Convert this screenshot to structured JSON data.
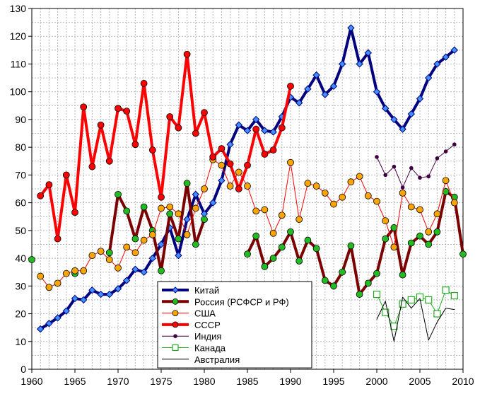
{
  "chart_data": {
    "type": "line",
    "title": "",
    "xlabel": "",
    "ylabel": "",
    "xlim": [
      1960,
      2010
    ],
    "ylim": [
      0,
      130
    ],
    "x_ticks": [
      1960,
      1965,
      1970,
      1975,
      1980,
      1985,
      1990,
      1995,
      2000,
      2005,
      2010
    ],
    "y_ticks": [
      0,
      10,
      20,
      30,
      40,
      50,
      60,
      70,
      80,
      90,
      100,
      110,
      120,
      130
    ],
    "grid": true,
    "legend_position": "bottom-center",
    "series": [
      {
        "name": "Китай",
        "color": "#000080",
        "width": 4,
        "marker": "diamond",
        "marker_color": "#3f8fff",
        "x": [
          1961,
          1962,
          1963,
          1964,
          1965,
          1966,
          1967,
          1968,
          1969,
          1970,
          1971,
          1972,
          1973,
          1974,
          1975,
          1976,
          1977,
          1978,
          1979,
          1980,
          1981,
          1982,
          1983,
          1984,
          1985,
          1986,
          1987,
          1988,
          1989,
          1990,
          1991,
          1992,
          1993,
          1994,
          1995,
          1996,
          1997,
          1998,
          1999,
          2000,
          2001,
          2002,
          2003,
          2004,
          2005,
          2006,
          2007,
          2008,
          2009
        ],
        "y": [
          14.5,
          16.5,
          18.5,
          21,
          25.5,
          25,
          28.5,
          27,
          27,
          29,
          32,
          36,
          35,
          40,
          45,
          51,
          41,
          54,
          63,
          56,
          60,
          68,
          81,
          88,
          86,
          90,
          86,
          85.5,
          91,
          98,
          96,
          101,
          106,
          99,
          102,
          110,
          123,
          110,
          114,
          100,
          94,
          90,
          86.5,
          92,
          97.5,
          105,
          110,
          112.5,
          115
        ]
      },
      {
        "name": "Россия (РСФСР и РФ)",
        "color": "#7b0000",
        "width": 4,
        "marker": "circle",
        "marker_color": "#22bb22",
        "segments": [
          {
            "x": [
              1960
            ],
            "y": [
              39.5
            ]
          },
          {
            "x": [
              1965
            ],
            "y": [
              34.5
            ]
          },
          {
            "x": [
              1969,
              1970,
              1971,
              1972,
              1973,
              1974,
              1975,
              1976,
              1977,
              1978,
              1979,
              1980,
              1981,
              1982
            ],
            "y": [
              42,
              63,
              57,
              47,
              58.5,
              50,
              35.5,
              56,
              47,
              67,
              45,
              54,
              null,
              null
            ]
          },
          {
            "x": [
              1985,
              1986,
              1987,
              1988,
              1989,
              1990,
              1991,
              1992,
              1993,
              1994,
              1995,
              1996,
              1997,
              1998,
              1999,
              2000,
              2001,
              2002,
              2003,
              2004,
              2005,
              2006,
              2007,
              2008,
              2009,
              2010
            ],
            "y": [
              41.5,
              48,
              37,
              40,
              44,
              49.5,
              39,
              46.5,
              43.5,
              32,
              30,
              35,
              44.5,
              27,
              31,
              34.5,
              47,
              51,
              34,
              45.5,
              48,
              45,
              49.5,
              64,
              62,
              41.5
            ]
          }
        ]
      },
      {
        "name": "США",
        "color": "#ff0000",
        "width": 1,
        "marker": "circle",
        "marker_color": "#ffa500",
        "x": [
          1961,
          1962,
          1963,
          1964,
          1965,
          1966,
          1967,
          1968,
          1969,
          1970,
          1971,
          1972,
          1973,
          1974,
          1975,
          1976,
          1977,
          1978,
          1979,
          1980,
          1981,
          1982,
          1983,
          1984,
          1985,
          1986,
          1987,
          1988,
          1989,
          1990,
          1991,
          1992,
          1993,
          1994,
          1995,
          1996,
          1997,
          1998,
          1999,
          2000,
          2001,
          2002,
          2003,
          2004,
          2005,
          2006,
          2007,
          2008,
          2009
        ],
        "y": [
          33.5,
          29.5,
          31,
          34.5,
          35.5,
          35.5,
          41,
          42.5,
          39.5,
          36.5,
          44,
          42,
          46.5,
          48.5,
          58,
          58.5,
          56,
          48.5,
          58,
          65,
          75.5,
          73.5,
          66,
          71,
          66,
          57,
          57.5,
          49,
          55.5,
          74.5,
          54,
          67,
          66,
          63.5,
          59.5,
          62,
          67.5,
          69.5,
          62.5,
          60.5,
          53.5,
          44,
          63.5,
          58.5,
          57.5,
          49.5,
          56,
          68,
          60
        ]
      },
      {
        "name": "СССР",
        "color": "#ff0000",
        "width": 4,
        "marker": "circle",
        "marker_color": "#ff0000",
        "x": [
          1961,
          1962,
          1963,
          1964,
          1965,
          1966,
          1967,
          1968,
          1969,
          1970,
          1971,
          1972,
          1973,
          1974,
          1975,
          1976,
          1977,
          1978,
          1979,
          1980,
          1981,
          1982,
          1983,
          1984,
          1985,
          1986,
          1987,
          1988,
          1989,
          1990
        ],
        "y": [
          62.5,
          66.5,
          47,
          70,
          56.5,
          94.5,
          73,
          88,
          75,
          94,
          93,
          81,
          103,
          79,
          62,
          91,
          87,
          113.5,
          85,
          92.5,
          76.5,
          79.5,
          74,
          65,
          73.5,
          86.5,
          77.5,
          79,
          87,
          102
        ]
      },
      {
        "name": "Индия",
        "color": "#400040",
        "width": 1,
        "marker": "dot",
        "marker_color": "#400040",
        "x": [
          2000,
          2001,
          2002,
          2003,
          2004,
          2005,
          2006,
          2007,
          2008,
          2009
        ],
        "y": [
          76.5,
          70,
          73,
          65.5,
          72.5,
          69,
          69.5,
          76,
          78.5,
          81
        ]
      },
      {
        "name": "Канада",
        "color": "#22aa22",
        "width": 1,
        "marker": "square",
        "marker_color": "#ffffff",
        "x": [
          2000,
          2001,
          2002,
          2003,
          2004,
          2005,
          2006,
          2007,
          2008,
          2009
        ],
        "y": [
          27,
          20.5,
          15.5,
          23.5,
          25,
          26,
          25,
          20,
          28.5,
          26.5
        ]
      },
      {
        "name": "Австралия",
        "color": "#000000",
        "width": 1,
        "marker": "none",
        "marker_color": "#000000",
        "x": [
          2000,
          2001,
          2002,
          2003,
          2004,
          2005,
          2006,
          2007,
          2008,
          2009
        ],
        "y": [
          18,
          24.5,
          10,
          26,
          22,
          25.5,
          10.5,
          17,
          22,
          21.5
        ]
      }
    ]
  }
}
